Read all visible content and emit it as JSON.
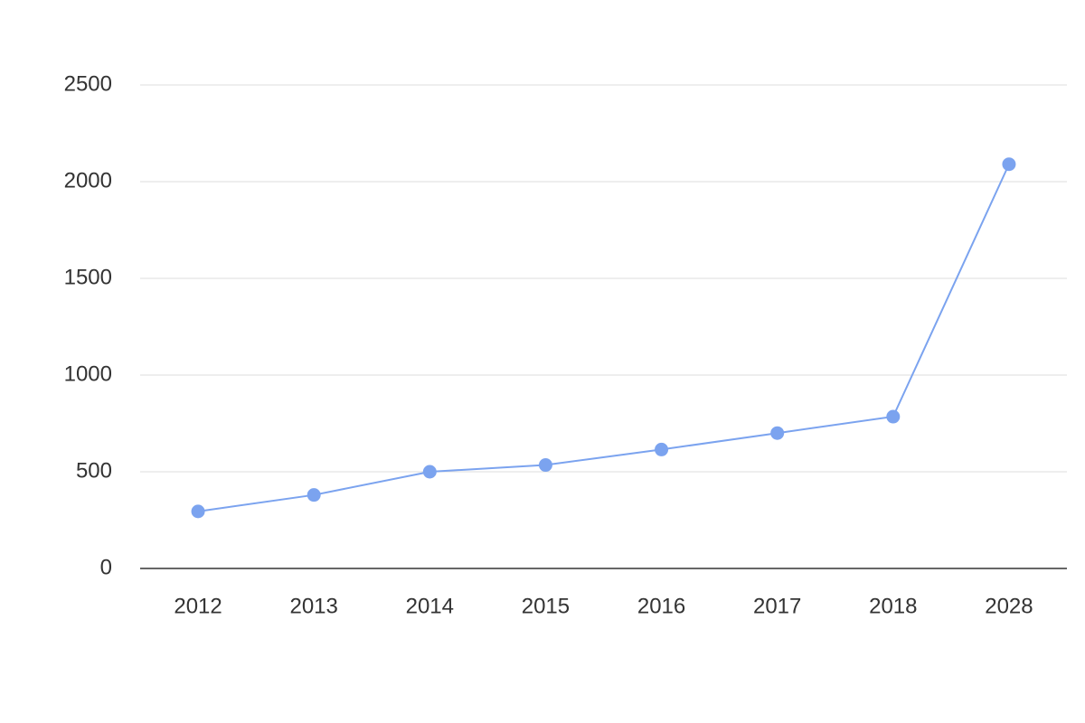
{
  "chart_data": {
    "type": "line",
    "categories": [
      "2012",
      "2013",
      "2014",
      "2015",
      "2016",
      "2017",
      "2018",
      "2028"
    ],
    "values": [
      295,
      380,
      500,
      535,
      615,
      700,
      785,
      2090
    ],
    "color": "#7ba3ef",
    "ylim": [
      0,
      2500
    ],
    "yticks": [
      0,
      500,
      1000,
      1500,
      2000,
      2500
    ],
    "grid": true
  }
}
